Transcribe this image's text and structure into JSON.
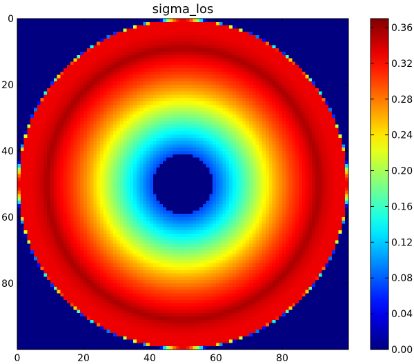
{
  "chart_data": {
    "type": "heatmap",
    "title": "sigma_los",
    "xlabel": "",
    "ylabel": "",
    "xlim": [
      0,
      100
    ],
    "ylim": [
      100,
      0
    ],
    "x_ticks": [
      0,
      20,
      40,
      60,
      80
    ],
    "y_ticks": [
      0,
      20,
      40,
      60,
      80
    ],
    "colorbar": {
      "min": 0.0,
      "max": 0.37,
      "ticks": [
        "0.00",
        "0.04",
        "0.08",
        "0.12",
        "0.16",
        "0.20",
        "0.24",
        "0.28",
        "0.32",
        "0.36"
      ],
      "colormap": "jet"
    },
    "field": {
      "shape": "concentric rings",
      "center": [
        50,
        50
      ],
      "grid_size": 100,
      "radial_profile": [
        {
          "r": 0,
          "value": 0.0
        },
        {
          "r": 8.9,
          "value": 0.0
        },
        {
          "r": 9.0,
          "value": 0.07
        },
        {
          "r": 13,
          "value": 0.11
        },
        {
          "r": 18,
          "value": 0.16
        },
        {
          "r": 23,
          "value": 0.21
        },
        {
          "r": 28,
          "value": 0.26
        },
        {
          "r": 33,
          "value": 0.3
        },
        {
          "r": 38,
          "value": 0.33
        },
        {
          "r": 41,
          "value": 0.355
        },
        {
          "r": 43,
          "value": 0.34
        },
        {
          "r": 46,
          "value": 0.33
        },
        {
          "r": 49.5,
          "value": 0.33
        },
        {
          "r": 50.0,
          "value": 0.0
        }
      ],
      "outside_value": 0.0
    }
  }
}
